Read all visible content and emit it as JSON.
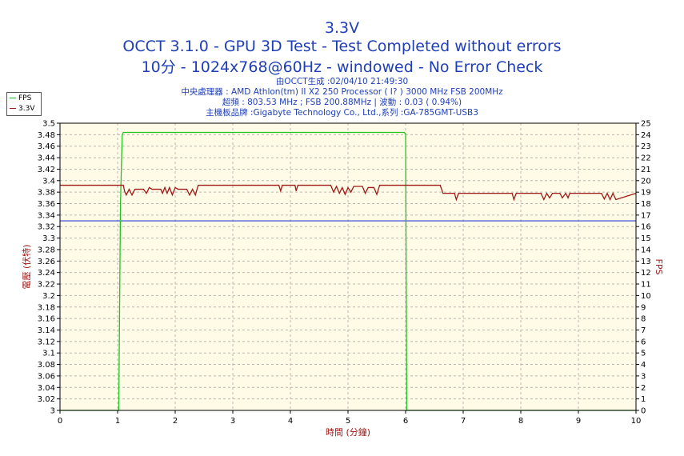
{
  "chart_data": {
    "type": "line",
    "title": "3.3V",
    "subtitle": "OCCT 3.1.0 - GPU 3D Test - Test Completed without errors",
    "subtitle2": "10分 - 1024x768@60Hz - windowed - No Error Check",
    "info_lines": [
      "由OCCT生成 :02/04/10 21:49:30",
      "中央處理器 : AMD Athlon(tm) II X2 250 Processor (  I? ) 3000 MHz FSB 200MHz",
      "超頻 : 803.53 MHz ; FSB 200.88MHz | 波動 : 0.03 ( 0.94%)",
      "主機板品牌 :Gigabyte Technology Co., Ltd.,系列 :GA-785GMT-USB3"
    ],
    "xlabel": "時間 (分鐘)",
    "ylabel_left": "電壓 (伏特)",
    "ylabel_right": "FPS",
    "xlim": [
      0,
      10
    ],
    "ylim_left": [
      3.0,
      3.5
    ],
    "ylim_right": [
      0,
      25
    ],
    "x_ticks": [
      "0",
      "1",
      "2",
      "3",
      "4",
      "5",
      "6",
      "7",
      "8",
      "9",
      "10"
    ],
    "y_ticks_left": [
      "3",
      "3.02",
      "3.04",
      "3.06",
      "3.08",
      "3.1",
      "3.12",
      "3.14",
      "3.16",
      "3.18",
      "3.2",
      "3.22",
      "3.24",
      "3.26",
      "3.28",
      "3.3",
      "3.32",
      "3.34",
      "3.36",
      "3.38",
      "3.4",
      "3.42",
      "3.44",
      "3.46",
      "3.48",
      "3.5"
    ],
    "y_ticks_right": [
      "0",
      "1",
      "2",
      "3",
      "4",
      "5",
      "6",
      "7",
      "8",
      "9",
      "10",
      "11",
      "12",
      "13",
      "14",
      "15",
      "16",
      "17",
      "18",
      "19",
      "20",
      "21",
      "22",
      "23",
      "24",
      "25"
    ],
    "grid": true,
    "legend": [
      "FPS",
      "3.3V"
    ],
    "colors": {
      "fps": "#22c422",
      "voltage": "#a01818",
      "reference": "#2a3ed6",
      "plot_bg": "#fffbe6",
      "text": "#1f3fb8",
      "axis_label": "#a01818"
    },
    "reference_line": 3.33,
    "series": [
      {
        "name": "FPS",
        "axis": "right",
        "x": [
          0,
          1.02,
          1.05,
          1.08,
          1.1,
          5.98,
          6.0,
          6.02,
          10
        ],
        "y": [
          0,
          0,
          18,
          24,
          24.2,
          24.2,
          24,
          0,
          0
        ]
      },
      {
        "name": "3.3V",
        "axis": "left",
        "x": [
          0,
          1.1,
          1.12,
          1.15,
          1.2,
          1.25,
          1.3,
          1.45,
          1.5,
          1.55,
          1.6,
          1.75,
          1.78,
          1.82,
          1.86,
          1.9,
          1.95,
          2.0,
          2.05,
          2.1,
          2.2,
          2.25,
          2.3,
          2.35,
          2.4,
          3.8,
          3.83,
          3.86,
          4.08,
          4.1,
          4.13,
          4.7,
          4.75,
          4.8,
          4.85,
          4.9,
          4.95,
          5.0,
          5.05,
          5.1,
          5.25,
          5.3,
          5.35,
          5.45,
          5.5,
          5.55,
          6.6,
          6.65,
          6.85,
          6.88,
          6.92,
          7.85,
          7.88,
          7.92,
          8.35,
          8.4,
          8.45,
          8.5,
          8.55,
          8.6,
          8.68,
          8.72,
          8.78,
          8.82,
          8.85,
          9.4,
          9.45,
          9.5,
          9.55,
          9.6,
          9.65,
          10
        ],
        "y": [
          3.392,
          3.392,
          3.382,
          3.375,
          3.385,
          3.375,
          3.385,
          3.385,
          3.378,
          3.388,
          3.385,
          3.385,
          3.378,
          3.388,
          3.378,
          3.388,
          3.375,
          3.388,
          3.385,
          3.385,
          3.385,
          3.375,
          3.385,
          3.375,
          3.392,
          3.392,
          3.382,
          3.392,
          3.392,
          3.382,
          3.392,
          3.392,
          3.38,
          3.39,
          3.378,
          3.388,
          3.376,
          3.388,
          3.38,
          3.39,
          3.39,
          3.378,
          3.388,
          3.388,
          3.376,
          3.392,
          3.392,
          3.378,
          3.378,
          3.367,
          3.378,
          3.378,
          3.367,
          3.378,
          3.378,
          3.367,
          3.378,
          3.37,
          3.378,
          3.378,
          3.378,
          3.37,
          3.378,
          3.37,
          3.378,
          3.378,
          3.368,
          3.378,
          3.367,
          3.378,
          3.367,
          3.378
        ]
      }
    ]
  }
}
